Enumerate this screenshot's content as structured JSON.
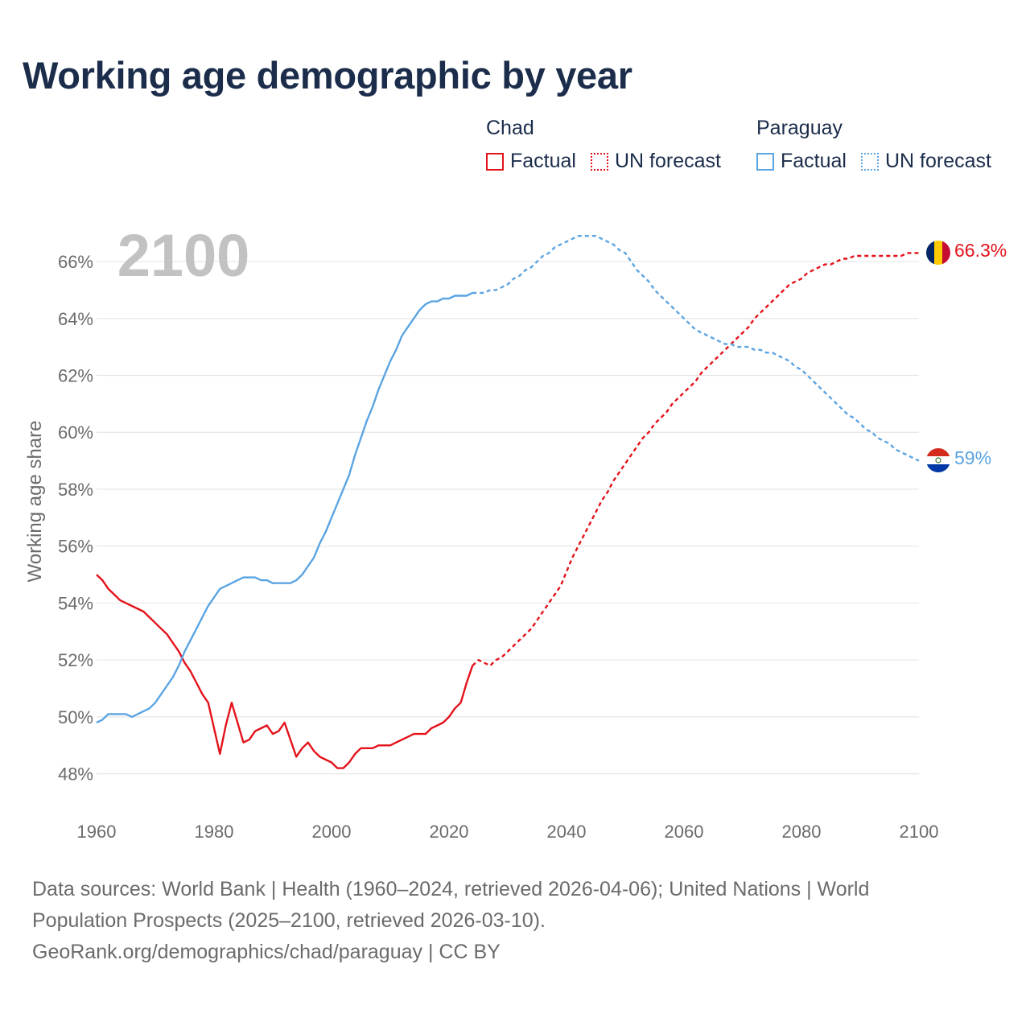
{
  "title": "Working age demographic by year",
  "year_badge": "2100",
  "legend": {
    "groups": [
      {
        "name": "Chad",
        "factual_label": "Factual",
        "forecast_label": "UN forecast",
        "color": "#e4121b"
      },
      {
        "name": "Paraguay",
        "factual_label": "Factual",
        "forecast_label": "UN forecast",
        "color": "#5ba4e2"
      }
    ]
  },
  "footer": {
    "line1": "Data sources: World Bank | Health (1960–2024, retrieved 2026-04-06); United Nations | World",
    "line2": "Population Prospects (2025–2100, retrieved 2026-03-10).",
    "line3": "GeoRank.org/demographics/chad/paraguay | CC BY"
  },
  "chart_data": {
    "type": "line",
    "title": "Working age demographic by year",
    "xlabel": "",
    "ylabel": "Working age share",
    "xlim": [
      1960,
      2100
    ],
    "ylim": [
      47,
      67.5
    ],
    "x_ticks": [
      1960,
      1980,
      2000,
      2020,
      2040,
      2060,
      2080,
      2100
    ],
    "x_tick_labels": [
      "1960",
      "1980",
      "2000",
      "2020",
      "2040",
      "2060",
      "2080",
      "2100"
    ],
    "y_ticks": [
      48,
      50,
      52,
      54,
      56,
      58,
      60,
      62,
      64,
      66
    ],
    "y_tick_labels": [
      "48%",
      "50%",
      "52%",
      "54%",
      "56%",
      "58%",
      "60%",
      "62%",
      "64%",
      "66%"
    ],
    "grid": true,
    "factual_end_year": 2024,
    "series": [
      {
        "name": "Chad",
        "color": "#e4121b",
        "end_label": "66.3%",
        "points": [
          [
            1960,
            55.0
          ],
          [
            1961,
            54.8
          ],
          [
            1962,
            54.5
          ],
          [
            1963,
            54.3
          ],
          [
            1964,
            54.1
          ],
          [
            1965,
            54.0
          ],
          [
            1966,
            53.9
          ],
          [
            1967,
            53.8
          ],
          [
            1968,
            53.7
          ],
          [
            1969,
            53.5
          ],
          [
            1970,
            53.3
          ],
          [
            1971,
            53.1
          ],
          [
            1972,
            52.9
          ],
          [
            1973,
            52.6
          ],
          [
            1974,
            52.3
          ],
          [
            1975,
            51.9
          ],
          [
            1976,
            51.6
          ],
          [
            1977,
            51.2
          ],
          [
            1978,
            50.8
          ],
          [
            1979,
            50.5
          ],
          [
            1980,
            49.6
          ],
          [
            1981,
            48.7
          ],
          [
            1982,
            49.7
          ],
          [
            1983,
            50.5
          ],
          [
            1984,
            49.8
          ],
          [
            1985,
            49.1
          ],
          [
            1986,
            49.2
          ],
          [
            1987,
            49.5
          ],
          [
            1988,
            49.6
          ],
          [
            1989,
            49.7
          ],
          [
            1990,
            49.4
          ],
          [
            1991,
            49.5
          ],
          [
            1992,
            49.8
          ],
          [
            1993,
            49.2
          ],
          [
            1994,
            48.6
          ],
          [
            1995,
            48.9
          ],
          [
            1996,
            49.1
          ],
          [
            1997,
            48.8
          ],
          [
            1998,
            48.6
          ],
          [
            1999,
            48.5
          ],
          [
            2000,
            48.4
          ],
          [
            2001,
            48.2
          ],
          [
            2002,
            48.2
          ],
          [
            2003,
            48.4
          ],
          [
            2004,
            48.7
          ],
          [
            2005,
            48.9
          ],
          [
            2006,
            48.9
          ],
          [
            2007,
            48.9
          ],
          [
            2008,
            49.0
          ],
          [
            2009,
            49.0
          ],
          [
            2010,
            49.0
          ],
          [
            2011,
            49.1
          ],
          [
            2012,
            49.2
          ],
          [
            2013,
            49.3
          ],
          [
            2014,
            49.4
          ],
          [
            2015,
            49.4
          ],
          [
            2016,
            49.4
          ],
          [
            2017,
            49.6
          ],
          [
            2018,
            49.7
          ],
          [
            2019,
            49.8
          ],
          [
            2020,
            50.0
          ],
          [
            2021,
            50.3
          ],
          [
            2022,
            50.5
          ],
          [
            2023,
            51.2
          ],
          [
            2024,
            51.8
          ],
          [
            2025,
            52.0
          ],
          [
            2026,
            51.9
          ],
          [
            2027,
            51.8
          ],
          [
            2028,
            52.0
          ],
          [
            2029,
            52.1
          ],
          [
            2030,
            52.3
          ],
          [
            2031,
            52.5
          ],
          [
            2032,
            52.7
          ],
          [
            2033,
            52.9
          ],
          [
            2034,
            53.1
          ],
          [
            2035,
            53.4
          ],
          [
            2036,
            53.7
          ],
          [
            2037,
            54.0
          ],
          [
            2038,
            54.3
          ],
          [
            2039,
            54.6
          ],
          [
            2040,
            55.1
          ],
          [
            2041,
            55.6
          ],
          [
            2042,
            56.0
          ],
          [
            2043,
            56.4
          ],
          [
            2044,
            56.8
          ],
          [
            2045,
            57.2
          ],
          [
            2046,
            57.6
          ],
          [
            2047,
            57.9
          ],
          [
            2048,
            58.3
          ],
          [
            2049,
            58.6
          ],
          [
            2050,
            58.9
          ],
          [
            2051,
            59.2
          ],
          [
            2052,
            59.5
          ],
          [
            2053,
            59.8
          ],
          [
            2054,
            60.0
          ],
          [
            2055,
            60.3
          ],
          [
            2056,
            60.5
          ],
          [
            2057,
            60.7
          ],
          [
            2058,
            61.0
          ],
          [
            2059,
            61.2
          ],
          [
            2060,
            61.4
          ],
          [
            2061,
            61.6
          ],
          [
            2062,
            61.8
          ],
          [
            2063,
            62.1
          ],
          [
            2064,
            62.3
          ],
          [
            2065,
            62.5
          ],
          [
            2066,
            62.7
          ],
          [
            2067,
            62.9
          ],
          [
            2068,
            63.1
          ],
          [
            2069,
            63.3
          ],
          [
            2070,
            63.5
          ],
          [
            2071,
            63.7
          ],
          [
            2072,
            64.0
          ],
          [
            2073,
            64.2
          ],
          [
            2074,
            64.4
          ],
          [
            2075,
            64.6
          ],
          [
            2076,
            64.8
          ],
          [
            2077,
            65.0
          ],
          [
            2078,
            65.2
          ],
          [
            2079,
            65.3
          ],
          [
            2080,
            65.4
          ],
          [
            2081,
            65.6
          ],
          [
            2082,
            65.7
          ],
          [
            2083,
            65.8
          ],
          [
            2084,
            65.9
          ],
          [
            2085,
            65.9
          ],
          [
            2086,
            66.0
          ],
          [
            2087,
            66.1
          ],
          [
            2088,
            66.1
          ],
          [
            2089,
            66.2
          ],
          [
            2090,
            66.2
          ],
          [
            2091,
            66.2
          ],
          [
            2092,
            66.2
          ],
          [
            2093,
            66.2
          ],
          [
            2094,
            66.2
          ],
          [
            2095,
            66.2
          ],
          [
            2096,
            66.2
          ],
          [
            2097,
            66.2
          ],
          [
            2098,
            66.3
          ],
          [
            2099,
            66.3
          ],
          [
            2100,
            66.3
          ]
        ]
      },
      {
        "name": "Paraguay",
        "color": "#5ba4e2",
        "end_label": "59%",
        "points": [
          [
            1960,
            49.8
          ],
          [
            1961,
            49.9
          ],
          [
            1962,
            50.1
          ],
          [
            1963,
            50.1
          ],
          [
            1964,
            50.1
          ],
          [
            1965,
            50.1
          ],
          [
            1966,
            50.0
          ],
          [
            1967,
            50.1
          ],
          [
            1968,
            50.2
          ],
          [
            1969,
            50.3
          ],
          [
            1970,
            50.5
          ],
          [
            1971,
            50.8
          ],
          [
            1972,
            51.1
          ],
          [
            1973,
            51.4
          ],
          [
            1974,
            51.8
          ],
          [
            1975,
            52.3
          ],
          [
            1976,
            52.7
          ],
          [
            1977,
            53.1
          ],
          [
            1978,
            53.5
          ],
          [
            1979,
            53.9
          ],
          [
            1980,
            54.2
          ],
          [
            1981,
            54.5
          ],
          [
            1982,
            54.6
          ],
          [
            1983,
            54.7
          ],
          [
            1984,
            54.8
          ],
          [
            1985,
            54.9
          ],
          [
            1986,
            54.9
          ],
          [
            1987,
            54.9
          ],
          [
            1988,
            54.8
          ],
          [
            1989,
            54.8
          ],
          [
            1990,
            54.7
          ],
          [
            1991,
            54.7
          ],
          [
            1992,
            54.7
          ],
          [
            1993,
            54.7
          ],
          [
            1994,
            54.8
          ],
          [
            1995,
            55.0
          ],
          [
            1996,
            55.3
          ],
          [
            1997,
            55.6
          ],
          [
            1998,
            56.1
          ],
          [
            1999,
            56.5
          ],
          [
            2000,
            57.0
          ],
          [
            2001,
            57.5
          ],
          [
            2002,
            58.0
          ],
          [
            2003,
            58.5
          ],
          [
            2004,
            59.2
          ],
          [
            2005,
            59.8
          ],
          [
            2006,
            60.4
          ],
          [
            2007,
            60.9
          ],
          [
            2008,
            61.5
          ],
          [
            2009,
            62.0
          ],
          [
            2010,
            62.5
          ],
          [
            2011,
            62.9
          ],
          [
            2012,
            63.4
          ],
          [
            2013,
            63.7
          ],
          [
            2014,
            64.0
          ],
          [
            2015,
            64.3
          ],
          [
            2016,
            64.5
          ],
          [
            2017,
            64.6
          ],
          [
            2018,
            64.6
          ],
          [
            2019,
            64.7
          ],
          [
            2020,
            64.7
          ],
          [
            2021,
            64.8
          ],
          [
            2022,
            64.8
          ],
          [
            2023,
            64.8
          ],
          [
            2024,
            64.9
          ],
          [
            2025,
            64.9
          ],
          [
            2026,
            64.9
          ],
          [
            2027,
            65.0
          ],
          [
            2028,
            65.0
          ],
          [
            2029,
            65.1
          ],
          [
            2030,
            65.2
          ],
          [
            2031,
            65.4
          ],
          [
            2032,
            65.5
          ],
          [
            2033,
            65.7
          ],
          [
            2034,
            65.8
          ],
          [
            2035,
            66.0
          ],
          [
            2036,
            66.2
          ],
          [
            2037,
            66.3
          ],
          [
            2038,
            66.5
          ],
          [
            2039,
            66.6
          ],
          [
            2040,
            66.7
          ],
          [
            2041,
            66.8
          ],
          [
            2042,
            66.9
          ],
          [
            2043,
            66.9
          ],
          [
            2044,
            66.9
          ],
          [
            2045,
            66.9
          ],
          [
            2046,
            66.8
          ],
          [
            2047,
            66.7
          ],
          [
            2048,
            66.6
          ],
          [
            2049,
            66.4
          ],
          [
            2050,
            66.3
          ],
          [
            2051,
            66.0
          ],
          [
            2052,
            65.7
          ],
          [
            2053,
            65.5
          ],
          [
            2054,
            65.3
          ],
          [
            2055,
            65.0
          ],
          [
            2056,
            64.8
          ],
          [
            2057,
            64.6
          ],
          [
            2058,
            64.4
          ],
          [
            2059,
            64.2
          ],
          [
            2060,
            64.0
          ],
          [
            2061,
            63.8
          ],
          [
            2062,
            63.6
          ],
          [
            2063,
            63.5
          ],
          [
            2064,
            63.4
          ],
          [
            2065,
            63.3
          ],
          [
            2066,
            63.2
          ],
          [
            2067,
            63.1
          ],
          [
            2068,
            63.1
          ],
          [
            2069,
            63.0
          ],
          [
            2070,
            63.0
          ],
          [
            2071,
            63.0
          ],
          [
            2072,
            62.9
          ],
          [
            2073,
            62.9
          ],
          [
            2074,
            62.8
          ],
          [
            2075,
            62.8
          ],
          [
            2076,
            62.7
          ],
          [
            2077,
            62.6
          ],
          [
            2078,
            62.5
          ],
          [
            2079,
            62.3
          ],
          [
            2080,
            62.2
          ],
          [
            2081,
            62.0
          ],
          [
            2082,
            61.8
          ],
          [
            2083,
            61.6
          ],
          [
            2084,
            61.4
          ],
          [
            2085,
            61.2
          ],
          [
            2086,
            61.0
          ],
          [
            2087,
            60.8
          ],
          [
            2088,
            60.6
          ],
          [
            2089,
            60.5
          ],
          [
            2090,
            60.3
          ],
          [
            2091,
            60.1
          ],
          [
            2092,
            60.0
          ],
          [
            2093,
            59.8
          ],
          [
            2094,
            59.7
          ],
          [
            2095,
            59.6
          ],
          [
            2096,
            59.4
          ],
          [
            2097,
            59.3
          ],
          [
            2098,
            59.2
          ],
          [
            2099,
            59.1
          ],
          [
            2100,
            59.0
          ]
        ]
      }
    ]
  }
}
